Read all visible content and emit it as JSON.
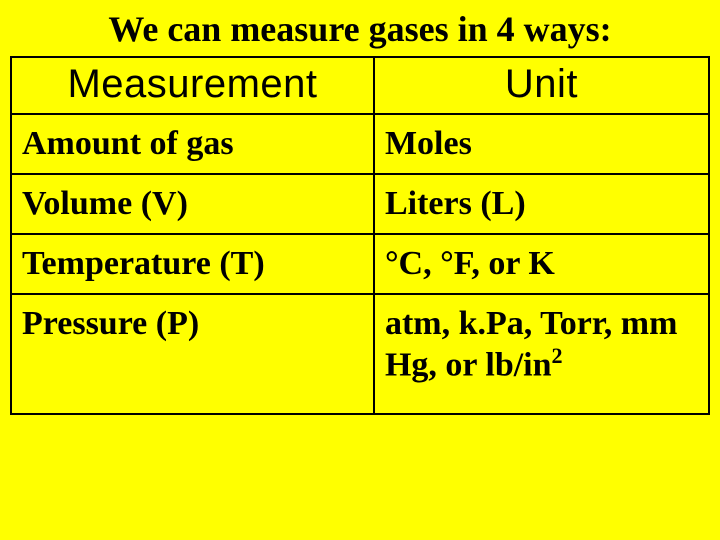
{
  "title": "We can measure gases in 4 ways:",
  "table": {
    "headers": {
      "measurement": "Measurement",
      "unit": "Unit"
    },
    "rows": [
      {
        "measurement": "Amount of gas",
        "unit": "Moles"
      },
      {
        "measurement": "Volume (V)",
        "unit": "Liters (L)"
      },
      {
        "measurement": "Temperature (T)",
        "unit": "°C, °F, or K"
      },
      {
        "measurement": "Pressure (P)",
        "unit": "atm, k.Pa, Torr, mm Hg, or lb/in",
        "unit_sup": "2"
      }
    ]
  },
  "style": {
    "background_color": "#ffff00",
    "text_color": "#000000",
    "border_color": "#000000",
    "title_fontsize": 36,
    "cell_fontsize": 34,
    "header_fontsize": 40,
    "header_font_family": "Impact",
    "body_font_family": "Times New Roman",
    "border_width": 2.5,
    "col_widths_pct": [
      52,
      48
    ]
  }
}
